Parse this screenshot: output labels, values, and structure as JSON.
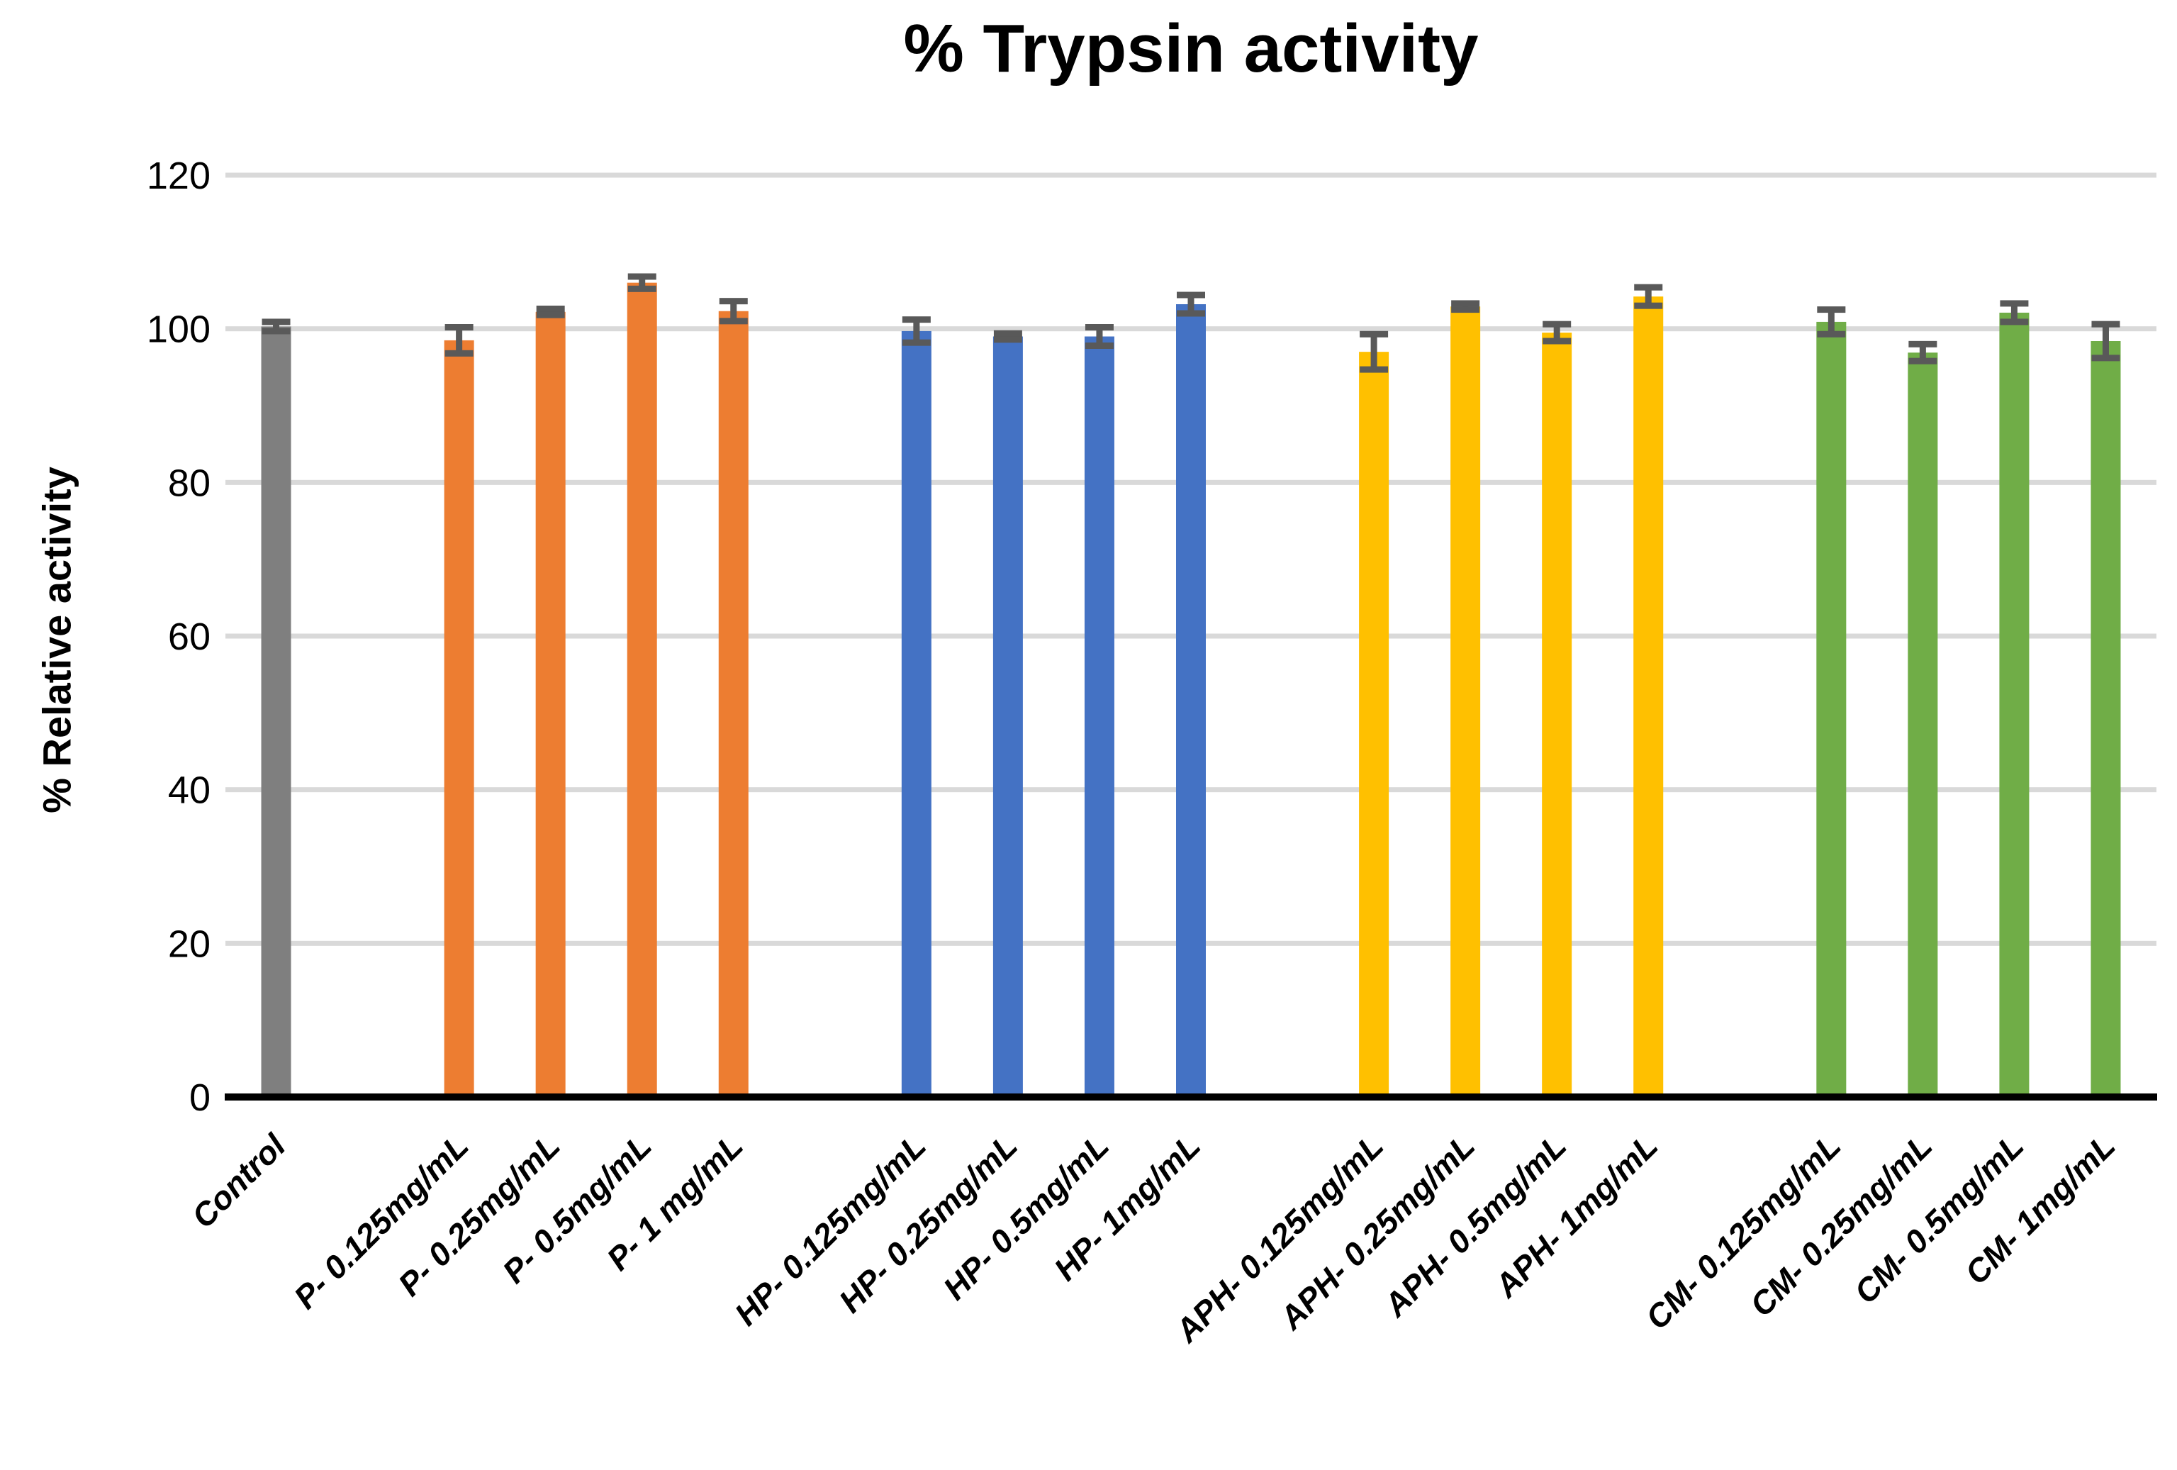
{
  "chart_data": {
    "type": "bar",
    "title": "% Trypsin activity",
    "ylabel": "% Relative activity",
    "xlabel": "",
    "ylim": [
      0,
      120
    ],
    "yticks": [
      0,
      20,
      40,
      60,
      80,
      100,
      120
    ],
    "grid": true,
    "legend": "none",
    "background_color": "#FFFFFF",
    "gridline_color": "#D9D9D9",
    "axis_color": "#000000",
    "error_bar_color": "#595959",
    "groups": [
      {
        "name": "Control",
        "color": "#7F7F7F",
        "bars": [
          {
            "label": "Control",
            "value": 100.3,
            "error": 0.6
          }
        ]
      },
      {
        "name": "P",
        "color": "#ED7D31",
        "bars": [
          {
            "label": "P- 0.125mg/mL",
            "value": 98.5,
            "error": 1.7
          },
          {
            "label": "P- 0.25mg/mL",
            "value": 102.2,
            "error": 0.4
          },
          {
            "label": "P- 0.5mg/mL",
            "value": 106.0,
            "error": 0.8
          },
          {
            "label": "P- 1 mg/mL",
            "value": 102.3,
            "error": 1.3
          }
        ]
      },
      {
        "name": "HP",
        "color": "#4472C4",
        "bars": [
          {
            "label": "HP- 0.125mg/mL",
            "value": 99.7,
            "error": 1.5
          },
          {
            "label": "HP- 0.25mg/mL",
            "value": 99.0,
            "error": 0.4
          },
          {
            "label": "HP- 0.5mg/mL",
            "value": 99.0,
            "error": 1.2
          },
          {
            "label": "HP- 1mg/mL",
            "value": 103.2,
            "error": 1.2
          }
        ]
      },
      {
        "name": "APH",
        "color": "#FFC000",
        "bars": [
          {
            "label": "APH- 0.125mg/mL",
            "value": 97.0,
            "error": 2.3
          },
          {
            "label": "APH- 0.25mg/mL",
            "value": 102.9,
            "error": 0.4
          },
          {
            "label": "APH- 0.5mg/mL",
            "value": 99.5,
            "error": 1.1
          },
          {
            "label": "APH- 1mg/mL",
            "value": 104.2,
            "error": 1.2
          }
        ]
      },
      {
        "name": "CM",
        "color": "#70AD47",
        "bars": [
          {
            "label": "CM- 0.125mg/mL",
            "value": 100.9,
            "error": 1.6
          },
          {
            "label": "CM- 0.25mg/mL",
            "value": 96.9,
            "error": 1.1
          },
          {
            "label": "CM- 0.5mg/mL",
            "value": 102.1,
            "error": 1.2
          },
          {
            "label": "CM- 1mg/mL",
            "value": 98.4,
            "error": 2.2
          }
        ]
      }
    ]
  }
}
